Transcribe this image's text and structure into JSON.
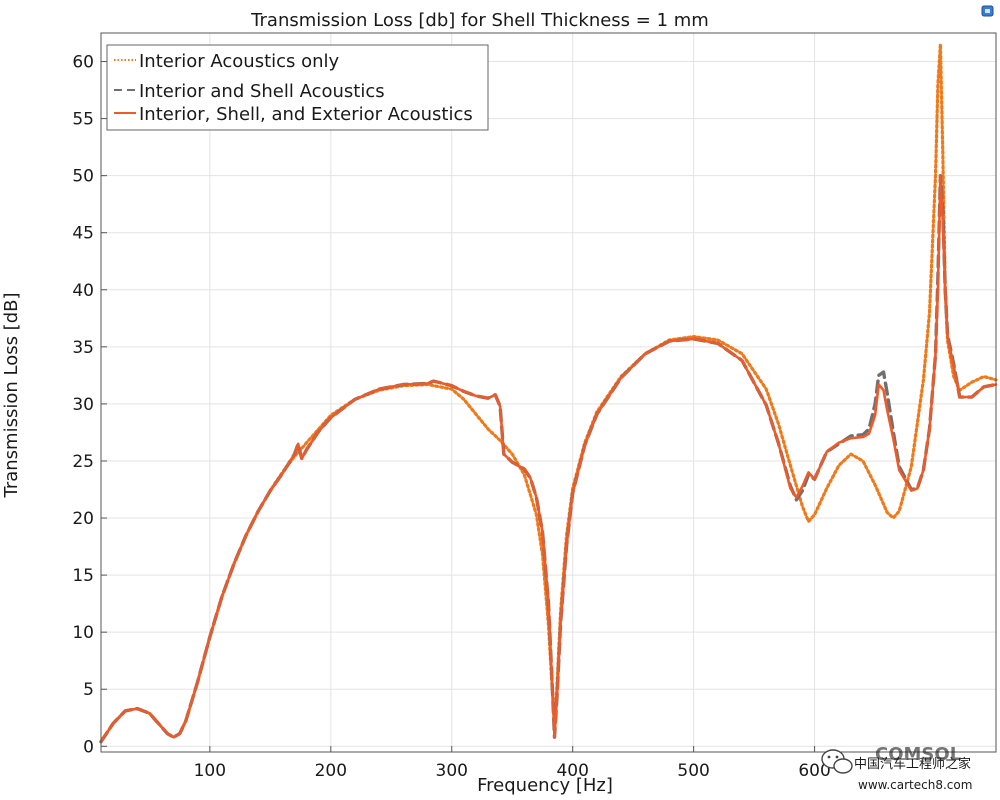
{
  "chart_data": {
    "type": "line",
    "title": "Transmission Loss [db] for Shell Thickness = 1 mm",
    "xlabel": "Frequency [Hz]",
    "ylabel": "Transmission Loss [dB]",
    "xlim": [
      10,
      750
    ],
    "ylim": [
      -0.5,
      62.5
    ],
    "xticks": [
      100,
      200,
      300,
      400,
      500,
      600
    ],
    "yticks": [
      0,
      5,
      10,
      15,
      20,
      25,
      30,
      35,
      40,
      45,
      50,
      55,
      60
    ],
    "grid": true,
    "legend_position": "top-left",
    "series": [
      {
        "name": "Interior Acoustics only",
        "color": "#f07a1a",
        "dash": "dotted",
        "x": [
          10,
          20,
          30,
          40,
          50,
          60,
          65,
          70,
          75,
          80,
          90,
          100,
          110,
          120,
          130,
          140,
          150,
          160,
          170,
          175,
          180,
          190,
          200,
          220,
          240,
          260,
          280,
          300,
          310,
          320,
          330,
          340,
          350,
          360,
          370,
          375,
          380,
          383,
          385,
          387,
          390,
          395,
          400,
          410,
          420,
          440,
          460,
          480,
          500,
          520,
          540,
          560,
          570,
          580,
          590,
          595,
          600,
          610,
          620,
          630,
          640,
          650,
          660,
          665,
          670,
          680,
          690,
          695,
          700,
          702,
          704,
          706,
          708,
          710,
          715,
          720,
          730,
          740,
          750
        ],
        "y": [
          0.4,
          2.0,
          3.1,
          3.3,
          2.9,
          1.7,
          1.1,
          0.8,
          1.1,
          2.2,
          5.7,
          9.6,
          13.1,
          16.0,
          18.5,
          20.6,
          22.4,
          24.0,
          25.4,
          26.0,
          26.6,
          27.8,
          29.0,
          30.4,
          31.2,
          31.6,
          31.7,
          31.3,
          30.4,
          29.1,
          27.8,
          26.8,
          25.6,
          23.8,
          20.3,
          16.8,
          10.6,
          5.2,
          2.0,
          5.3,
          11.8,
          18.5,
          22.6,
          26.6,
          29.3,
          32.4,
          34.4,
          35.6,
          35.9,
          35.6,
          34.4,
          31.3,
          28.3,
          24.6,
          21.0,
          19.7,
          20.3,
          22.6,
          24.6,
          25.6,
          25.0,
          22.9,
          20.5,
          20.0,
          20.6,
          24.5,
          32.1,
          38.0,
          50.0,
          58.0,
          61.5,
          52.0,
          40.0,
          35.5,
          32.4,
          31.2,
          31.9,
          32.4,
          32.1
        ]
      },
      {
        "name": "Interior and Shell Acoustics",
        "color": "#707070",
        "dash": "dashed",
        "x": [
          10,
          20,
          30,
          40,
          50,
          60,
          65,
          70,
          75,
          80,
          90,
          100,
          110,
          120,
          130,
          140,
          150,
          160,
          170,
          173,
          176,
          180,
          190,
          200,
          220,
          240,
          260,
          280,
          285,
          300,
          310,
          320,
          330,
          336,
          340,
          343,
          350,
          360,
          365,
          370,
          375,
          380,
          383,
          385,
          387,
          390,
          395,
          400,
          410,
          420,
          440,
          460,
          480,
          500,
          520,
          540,
          560,
          570,
          580,
          585,
          590,
          595,
          600,
          605,
          610,
          620,
          630,
          640,
          645,
          650,
          653,
          657,
          660,
          665,
          670,
          680,
          685,
          690,
          695,
          700,
          702,
          704,
          706,
          708,
          710,
          715,
          720,
          730,
          740,
          750
        ],
        "y": [
          0.4,
          2.0,
          3.1,
          3.3,
          2.9,
          1.7,
          1.1,
          0.8,
          1.1,
          2.2,
          5.7,
          9.6,
          13.1,
          16.0,
          18.5,
          20.6,
          22.4,
          23.9,
          25.6,
          26.5,
          25.2,
          26.0,
          27.6,
          28.8,
          30.4,
          31.3,
          31.7,
          31.8,
          32.0,
          31.6,
          31.1,
          30.7,
          30.5,
          30.8,
          29.8,
          25.6,
          24.9,
          24.3,
          23.5,
          21.8,
          18.8,
          12.5,
          5.6,
          0.8,
          4.3,
          10.8,
          17.6,
          22.2,
          26.4,
          29.1,
          32.3,
          34.4,
          35.5,
          35.7,
          35.3,
          33.8,
          29.9,
          26.6,
          22.8,
          21.6,
          22.4,
          23.8,
          23.4,
          24.6,
          25.8,
          26.5,
          27.2,
          27.3,
          27.8,
          30.0,
          32.5,
          32.8,
          31.0,
          27.6,
          24.5,
          22.5,
          22.6,
          24.2,
          27.8,
          34.3,
          41.0,
          50.0,
          47.0,
          40.0,
          36.0,
          33.5,
          30.6,
          30.6,
          31.5,
          31.7
        ]
      },
      {
        "name": "Interior, Shell, and Exterior Acoustics",
        "color": "#f05a28",
        "dash": "solid",
        "x": [
          10,
          20,
          30,
          40,
          50,
          60,
          65,
          70,
          75,
          80,
          90,
          100,
          110,
          120,
          130,
          140,
          150,
          160,
          170,
          173,
          176,
          180,
          190,
          200,
          220,
          240,
          260,
          280,
          285,
          300,
          310,
          320,
          330,
          336,
          340,
          343,
          350,
          360,
          365,
          370,
          375,
          380,
          383,
          385,
          387,
          390,
          395,
          400,
          410,
          420,
          440,
          460,
          480,
          500,
          520,
          540,
          560,
          570,
          580,
          585,
          590,
          595,
          600,
          605,
          610,
          620,
          630,
          640,
          645,
          650,
          653,
          657,
          660,
          665,
          670,
          680,
          685,
          690,
          695,
          700,
          702,
          704,
          706,
          708,
          710,
          715,
          720,
          730,
          740,
          750
        ],
        "y": [
          0.4,
          2.0,
          3.1,
          3.3,
          2.9,
          1.7,
          1.1,
          0.8,
          1.1,
          2.2,
          5.7,
          9.6,
          13.1,
          16.0,
          18.5,
          20.6,
          22.4,
          23.9,
          25.6,
          26.5,
          25.2,
          26.0,
          27.6,
          28.8,
          30.4,
          31.3,
          31.7,
          31.8,
          32.0,
          31.6,
          31.1,
          30.7,
          30.5,
          30.8,
          29.8,
          25.6,
          24.9,
          24.3,
          23.5,
          21.8,
          18.8,
          12.5,
          5.6,
          0.8,
          4.3,
          10.8,
          17.6,
          22.2,
          26.4,
          29.1,
          32.3,
          34.4,
          35.5,
          35.7,
          35.3,
          33.8,
          29.9,
          26.6,
          22.6,
          21.8,
          22.8,
          24.0,
          23.4,
          24.6,
          25.8,
          26.6,
          27.0,
          27.1,
          27.4,
          29.0,
          31.7,
          31.2,
          29.5,
          27.0,
          24.2,
          22.4,
          22.6,
          24.2,
          27.8,
          34.3,
          40.0,
          50.0,
          46.0,
          40.0,
          35.8,
          33.3,
          30.6,
          30.6,
          31.5,
          31.7
        ]
      }
    ]
  },
  "watermark": {
    "logo_label": "COMSOL",
    "site_name": "中国汽车工程师之家",
    "site_url": "www.cartech8.com"
  },
  "colors": {
    "grid": "#e3e3e3",
    "frame": "#555555",
    "text": "#1a1a1a"
  }
}
